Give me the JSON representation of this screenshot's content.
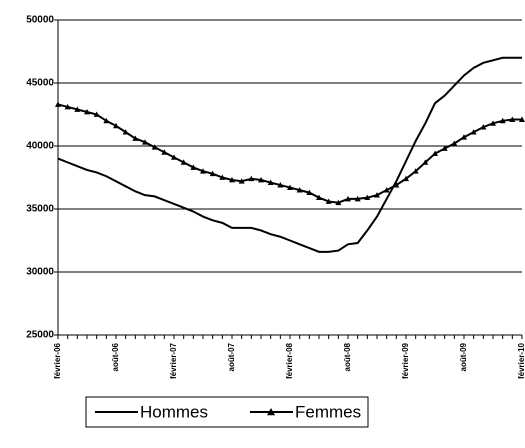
{
  "chart_data": {
    "type": "line",
    "categories": [
      "février-06",
      null,
      null,
      null,
      null,
      null,
      "août-06",
      null,
      null,
      null,
      null,
      null,
      "février-07",
      null,
      null,
      null,
      null,
      null,
      "août-07",
      null,
      null,
      null,
      null,
      null,
      "février-08",
      null,
      null,
      null,
      null,
      null,
      "août-08",
      null,
      null,
      null,
      null,
      null,
      "février-09",
      null,
      null,
      null,
      null,
      null,
      "août-09",
      null,
      null,
      null,
      null,
      null,
      "février-10"
    ],
    "series": [
      {
        "name": "Hommes",
        "color": "#000000",
        "marker": "none",
        "values": [
          39000,
          38700,
          38400,
          38100,
          37900,
          37600,
          37200,
          36800,
          36400,
          36100,
          36000,
          35700,
          35400,
          35100,
          34800,
          34400,
          34100,
          33900,
          33500,
          33500,
          33500,
          33300,
          33000,
          32800,
          32500,
          32200,
          31900,
          31600,
          31600,
          31700,
          32200,
          32300,
          33300,
          34400,
          35800,
          37200,
          38800,
          40400,
          41800,
          43400,
          44000,
          44800,
          45600,
          46200,
          46600,
          46800,
          47000,
          47000,
          47000
        ]
      },
      {
        "name": "Femmes",
        "color": "#000000",
        "marker": "triangle",
        "values": [
          43300,
          43100,
          42900,
          42700,
          42500,
          42000,
          41600,
          41100,
          40600,
          40300,
          39900,
          39500,
          39100,
          38700,
          38300,
          38000,
          37800,
          37500,
          37300,
          37200,
          37400,
          37300,
          37100,
          36900,
          36700,
          36500,
          36300,
          35900,
          35600,
          35500,
          35800,
          35800,
          35900,
          36100,
          36500,
          36900,
          37400,
          38000,
          38700,
          39400,
          39800,
          40200,
          40700,
          41100,
          41500,
          41800,
          42000,
          42100,
          42100
        ]
      }
    ],
    "ylim": [
      25000,
      50000
    ],
    "yticks": [
      25000,
      30000,
      35000,
      40000,
      45000,
      50000
    ],
    "grid": true
  }
}
